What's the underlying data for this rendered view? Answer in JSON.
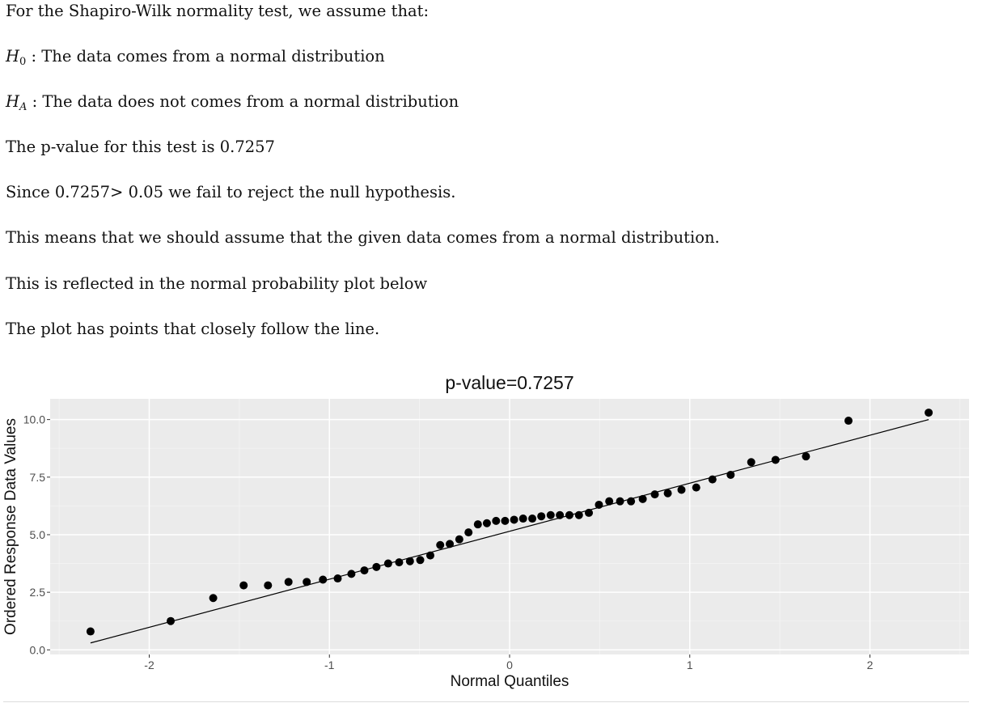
{
  "paragraphs": {
    "p1": "For the Shapiro-Wilk normality test, we assume that:",
    "h0_symbol": "H",
    "h0_sub": "0",
    "h0_text": ": The data comes from a normal distribution",
    "ha_symbol": "H",
    "ha_sub": "A",
    "ha_text": ": The data does not comes from a normal distribution",
    "p4": "The p-value for this test is 0.7257",
    "p5": "Since 0.7257> 0.05 we fail to reject the null hypothesis.",
    "p6": "This means that we should assume that the given data comes from a normal distribution.",
    "p7": "This is reflected in the normal probability plot below",
    "p8": "The plot has points that closely follow the line."
  },
  "chart_data": {
    "type": "scatter",
    "title": "p-value=0.7257",
    "xlabel": "Normal Quantiles",
    "ylabel": "Ordered Response Data Values",
    "xlim": [
      -2.55,
      2.55
    ],
    "ylim": [
      -0.2,
      10.9
    ],
    "x_ticks": [
      -2,
      -1,
      0,
      1,
      2
    ],
    "x_tick_labels": [
      "-2",
      "-1",
      "0",
      "1",
      "2"
    ],
    "y_ticks": [
      0,
      2.5,
      5,
      7.5,
      10
    ],
    "y_tick_labels": [
      "0.0",
      "2.5",
      "5.0",
      "7.5",
      "10.0"
    ],
    "grid": true,
    "points": {
      "x": [
        -2.326,
        -1.881,
        -1.645,
        -1.476,
        -1.341,
        -1.227,
        -1.126,
        -1.036,
        -0.954,
        -0.878,
        -0.806,
        -0.739,
        -0.674,
        -0.613,
        -0.553,
        -0.496,
        -0.44,
        -0.385,
        -0.332,
        -0.279,
        -0.228,
        -0.176,
        -0.126,
        -0.075,
        -0.025,
        0.025,
        0.075,
        0.126,
        0.176,
        0.228,
        0.279,
        0.332,
        0.385,
        0.44,
        0.496,
        0.553,
        0.613,
        0.674,
        0.739,
        0.806,
        0.878,
        0.954,
        1.036,
        1.126,
        1.227,
        1.341,
        1.476,
        1.645,
        1.881,
        2.326
      ],
      "y": [
        0.8,
        1.25,
        2.25,
        2.8,
        2.8,
        2.95,
        2.95,
        3.05,
        3.1,
        3.3,
        3.45,
        3.6,
        3.75,
        3.8,
        3.85,
        3.9,
        4.1,
        4.55,
        4.6,
        4.8,
        5.1,
        5.45,
        5.5,
        5.6,
        5.6,
        5.65,
        5.7,
        5.7,
        5.8,
        5.85,
        5.85,
        5.85,
        5.85,
        5.95,
        6.3,
        6.45,
        6.45,
        6.45,
        6.55,
        6.75,
        6.8,
        6.95,
        7.05,
        7.4,
        7.6,
        8.15,
        8.25,
        8.4,
        9.95,
        10.3
      ]
    },
    "qq_line": {
      "x": [
        -2.326,
        2.326
      ],
      "y": [
        0.3,
        10.0
      ]
    }
  }
}
